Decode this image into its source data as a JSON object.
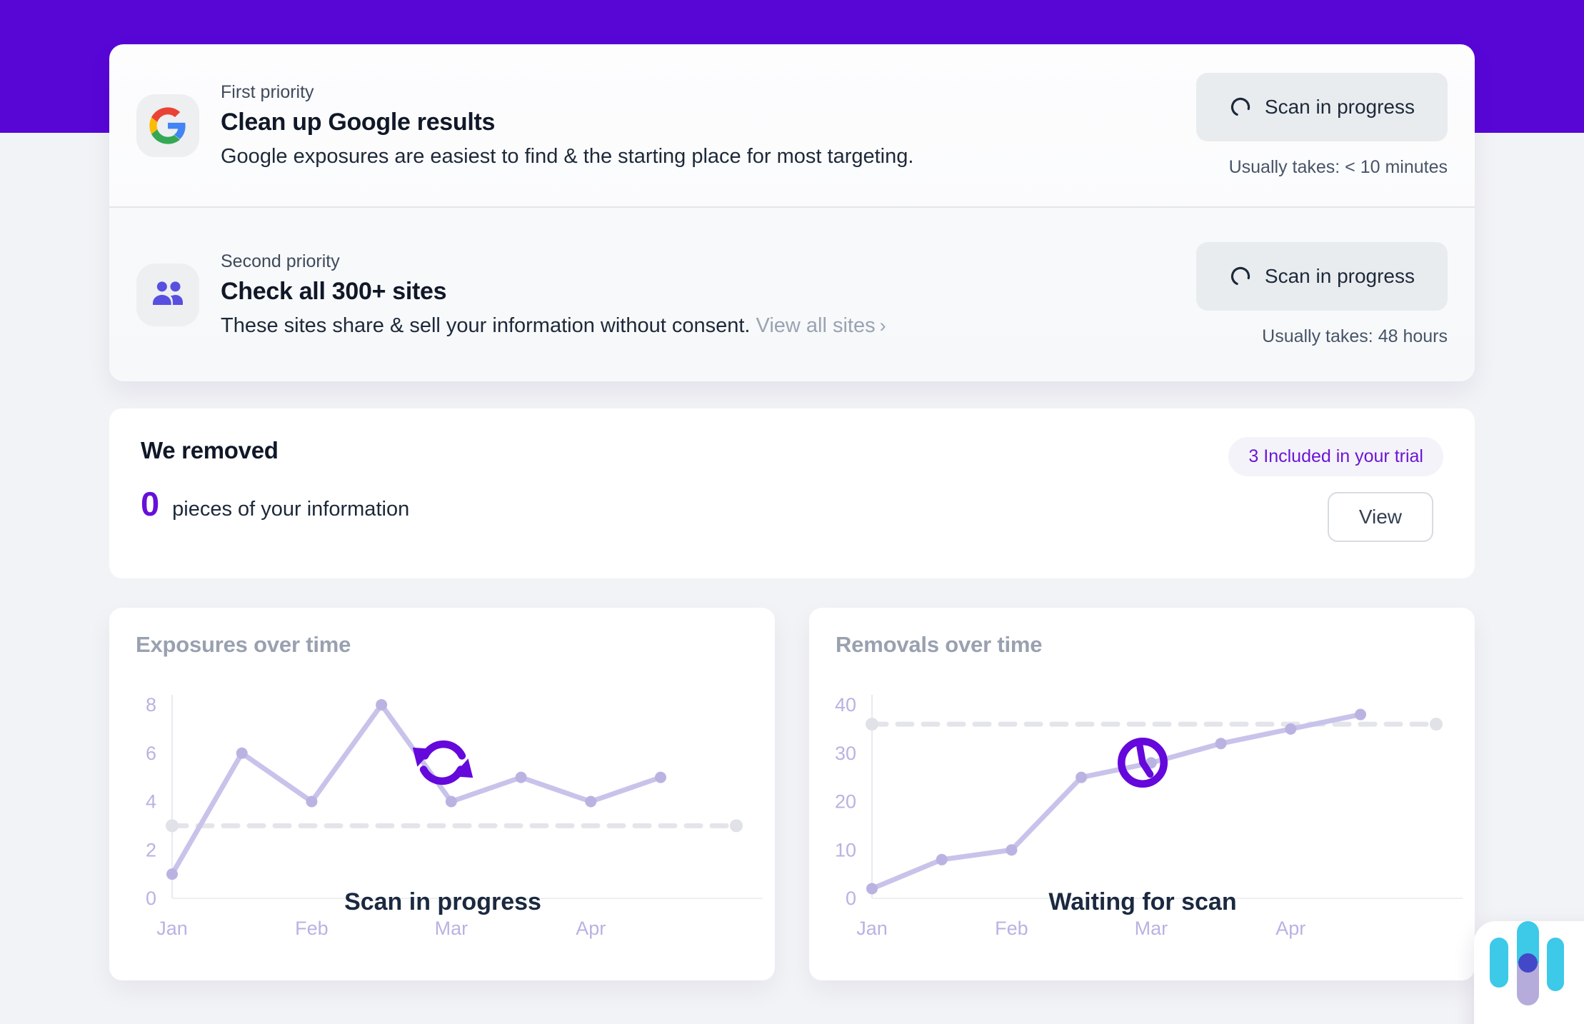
{
  "theme": {
    "band_color": "#5806d6",
    "accent_purple": "#6610d9",
    "chart_line": "#c8c3ea",
    "chart_point": "#bab3e2",
    "chart_tick": "#b9b2e3",
    "dashed_line": "#e3e5ea",
    "widget_cyan": "#3dc9e8",
    "widget_lavender": "#b5acdb",
    "widget_indigo": "#4348c8"
  },
  "priorities": {
    "rows": [
      {
        "icon": "google-icon",
        "kicker": "First priority",
        "title": "Clean up Google results",
        "description": "Google exposures are easiest to find & the starting place for most targeting.",
        "button_label": "Scan in progress",
        "caption": "Usually takes: < 10 minutes"
      },
      {
        "icon": "people-icon",
        "kicker": "Second priority",
        "title": "Check all 300+ sites",
        "description": "These sites share & sell your information without consent.",
        "link_label": "View all sites",
        "link_chevron": "›",
        "button_label": "Scan in progress",
        "caption": "Usually takes: 48 hours"
      }
    ]
  },
  "removed": {
    "title": "We removed",
    "count": "0",
    "count_label": "pieces of your information",
    "badge": "3 Included in your trial",
    "view_button": "View"
  },
  "chart_data": [
    {
      "type": "line",
      "title": "Exposures over time",
      "tick_labels": [
        "Jan",
        "Feb",
        "Mar",
        "Apr"
      ],
      "points_per_tick": 2,
      "values": [
        1,
        6,
        4,
        8,
        4,
        5,
        4,
        5
      ],
      "y_ticks": [
        0,
        2,
        4,
        6,
        8
      ],
      "ylim": [
        0,
        8
      ],
      "baseline": 3,
      "grid": false,
      "overlay": {
        "icon": "refresh-icon",
        "label": "Scan in progress"
      }
    },
    {
      "type": "line",
      "title": "Removals over time",
      "tick_labels": [
        "Jan",
        "Feb",
        "Mar",
        "Apr"
      ],
      "points_per_tick": 2,
      "values": [
        2,
        8,
        10,
        25,
        28,
        32,
        35,
        38
      ],
      "y_ticks": [
        0,
        10,
        20,
        30,
        40
      ],
      "ylim": [
        0,
        40
      ],
      "baseline": 36,
      "grid": false,
      "overlay": {
        "icon": "clock-icon",
        "label": "Waiting for scan"
      }
    }
  ]
}
